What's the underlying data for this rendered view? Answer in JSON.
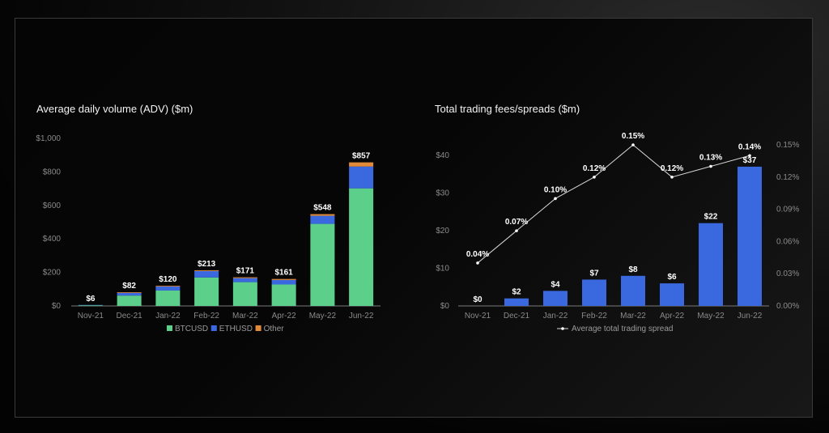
{
  "chart_data": [
    {
      "type": "bar",
      "stacked": true,
      "title": "Average daily volume (ADV) ($m)",
      "categories": [
        "Nov-21",
        "Dec-21",
        "Jan-22",
        "Feb-22",
        "Mar-22",
        "Apr-22",
        "May-22",
        "Jun-22"
      ],
      "ylim": [
        0,
        1000
      ],
      "yticks": [
        "$0",
        "$200",
        "$400",
        "$600",
        "$800",
        "$1,000"
      ],
      "series": [
        {
          "name": "BTCUSD",
          "color": "#5ccf8a",
          "values": [
            4,
            62,
            92,
            170,
            142,
            128,
            490,
            702
          ]
        },
        {
          "name": "ETHUSD",
          "color": "#3a68de",
          "values": [
            2,
            16,
            24,
            38,
            24,
            27,
            48,
            130
          ]
        },
        {
          "name": "Other",
          "color": "#e08a3a",
          "values": [
            0,
            4,
            4,
            5,
            5,
            6,
            10,
            25
          ]
        }
      ],
      "totals": [
        "$6",
        "$82",
        "$120",
        "$213",
        "$171",
        "$161",
        "$548",
        "$857"
      ],
      "legend": "bottom"
    },
    {
      "type": "bar+line",
      "title": "Total trading fees/spreads ($m)",
      "categories": [
        "Nov-21",
        "Dec-21",
        "Jan-22",
        "Feb-22",
        "Mar-22",
        "Apr-22",
        "May-22",
        "Jun-22"
      ],
      "bars": {
        "color": "#3a68de",
        "values": [
          0,
          2,
          4,
          7,
          8,
          6,
          22,
          37
        ],
        "labels": [
          "$0",
          "$2",
          "$4",
          "$7",
          "$8",
          "$6",
          "$22",
          "$37"
        ],
        "ylim": [
          0,
          45
        ],
        "yticks": [
          "$0",
          "$10",
          "$20",
          "$30",
          "$40"
        ]
      },
      "line": {
        "name": "Average total trading spread",
        "values": [
          0.04,
          0.07,
          0.1,
          0.12,
          0.15,
          0.12,
          0.13,
          0.14
        ],
        "labels": [
          "0.04%",
          "0.07%",
          "0.10%",
          "0.12%",
          "0.15%",
          "0.12%",
          "0.13%",
          "0.14%"
        ],
        "ylim": [
          0,
          0.1575
        ],
        "yticks": [
          "0.00%",
          "0.03%",
          "0.06%",
          "0.09%",
          "0.12%",
          "0.15%"
        ]
      },
      "legend": "bottom"
    }
  ]
}
